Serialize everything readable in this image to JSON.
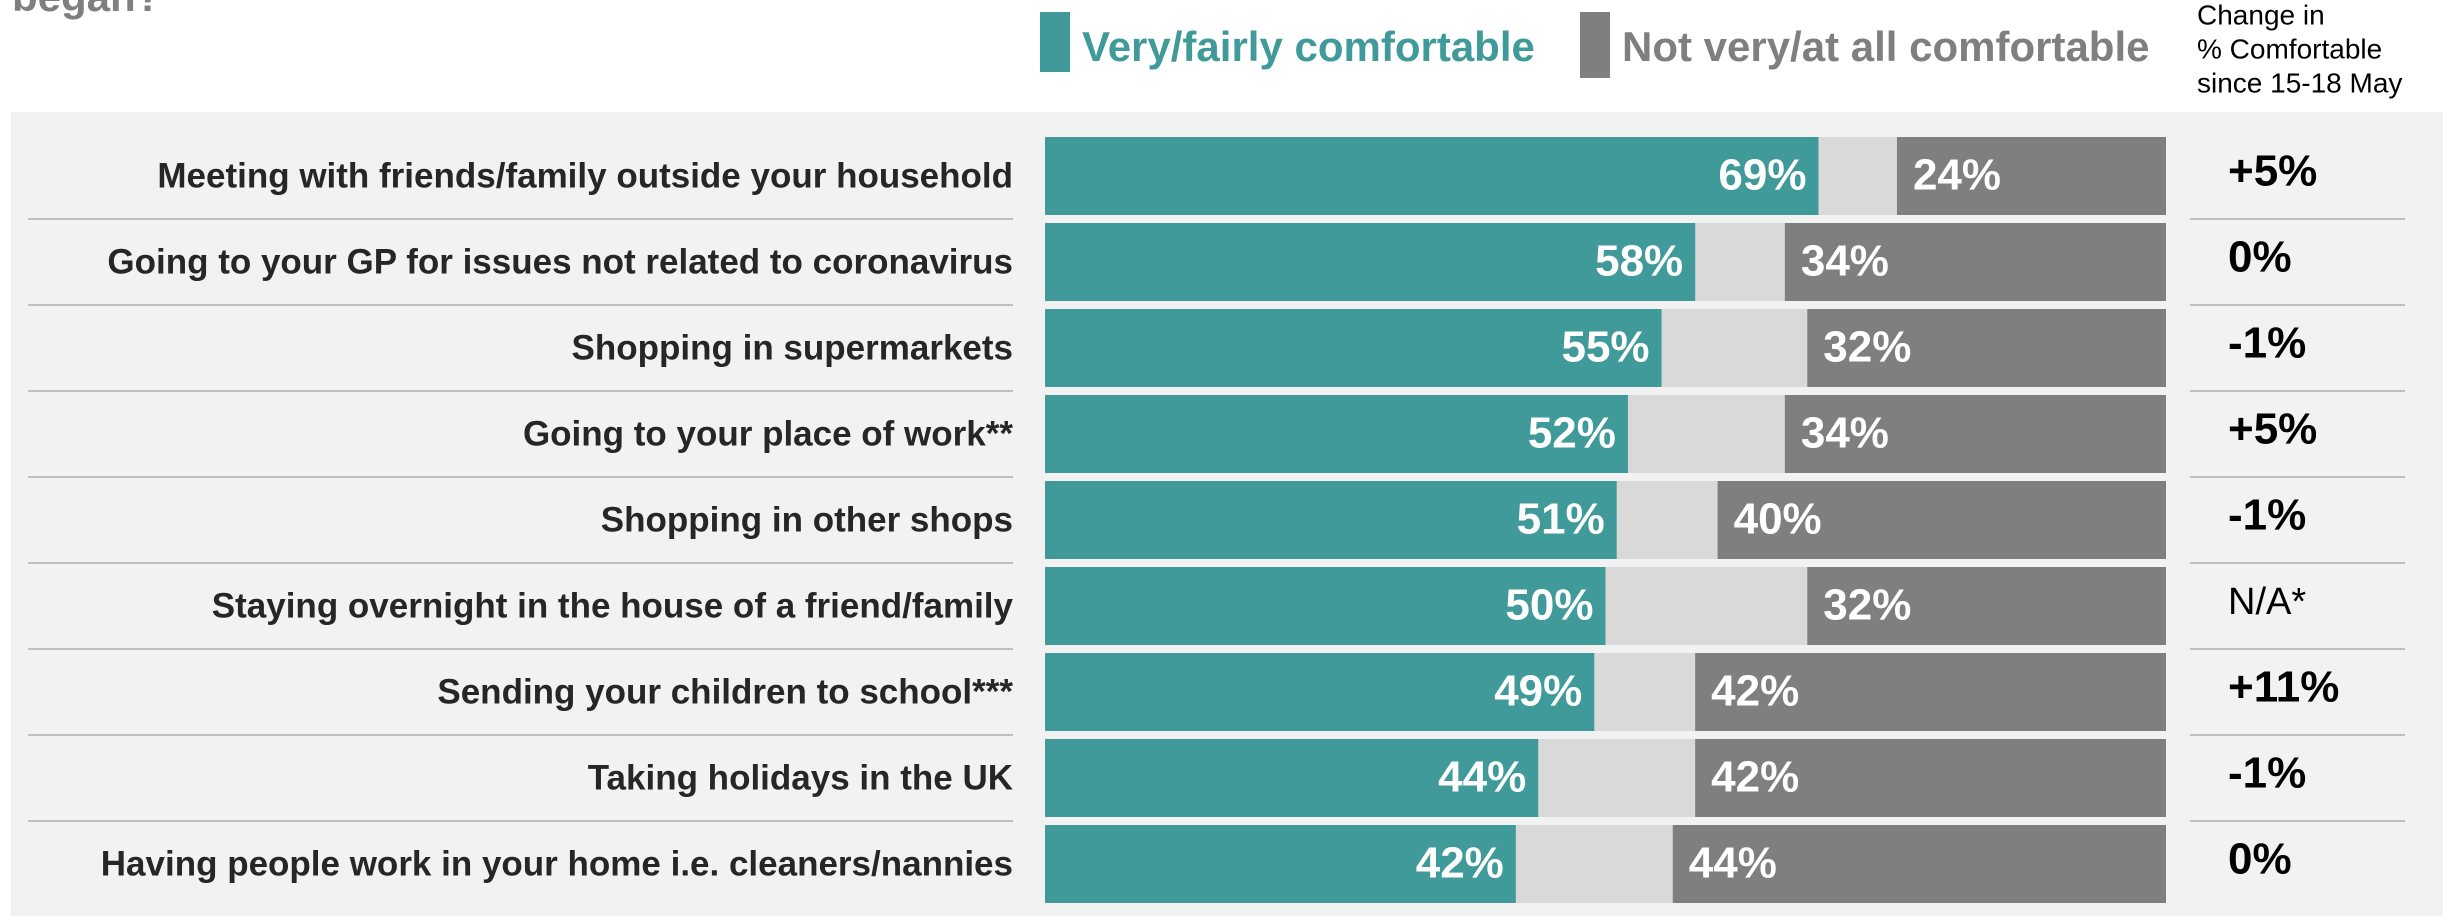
{
  "chart_data": {
    "type": "diverging_bar",
    "title": "began?",
    "categories": [
      "Meeting with friends/family outside your household",
      "Going to your GP for issues not related to coronavirus",
      "Shopping in supermarkets",
      "Going to your place of work**",
      "Shopping in other shops",
      "Staying overnight in the house of a friend/family",
      "Sending your children to school***",
      "Taking holidays in the UK",
      "Having people work in your home i.e. cleaners/nannies"
    ],
    "xlim": [
      0,
      100
    ],
    "series": [
      {
        "name": "Very/fairly comfortable",
        "color": "#419a9a",
        "values": [
          69,
          58,
          55,
          52,
          51,
          50,
          49,
          44,
          42
        ],
        "value_labels": [
          "69%",
          "58%",
          "55%",
          "52%",
          "51%",
          "50%",
          "49%",
          "44%",
          "42%"
        ]
      },
      {
        "name": "Not very/at all comfortable",
        "color": "#7f7f7f",
        "values": [
          24,
          34,
          32,
          34,
          40,
          32,
          42,
          42,
          44
        ],
        "value_labels": [
          "24%",
          "34%",
          "32%",
          "34%",
          "40%",
          "32%",
          "42%",
          "42%",
          "44%"
        ]
      }
    ],
    "change_header": [
      "Change in",
      "% Comfortable",
      "since 15-18 May"
    ],
    "change": [
      "+5%",
      "0%",
      "-1%",
      "+5%",
      "-1%",
      "N/A*",
      "+11%",
      "-1%",
      "0%"
    ]
  }
}
